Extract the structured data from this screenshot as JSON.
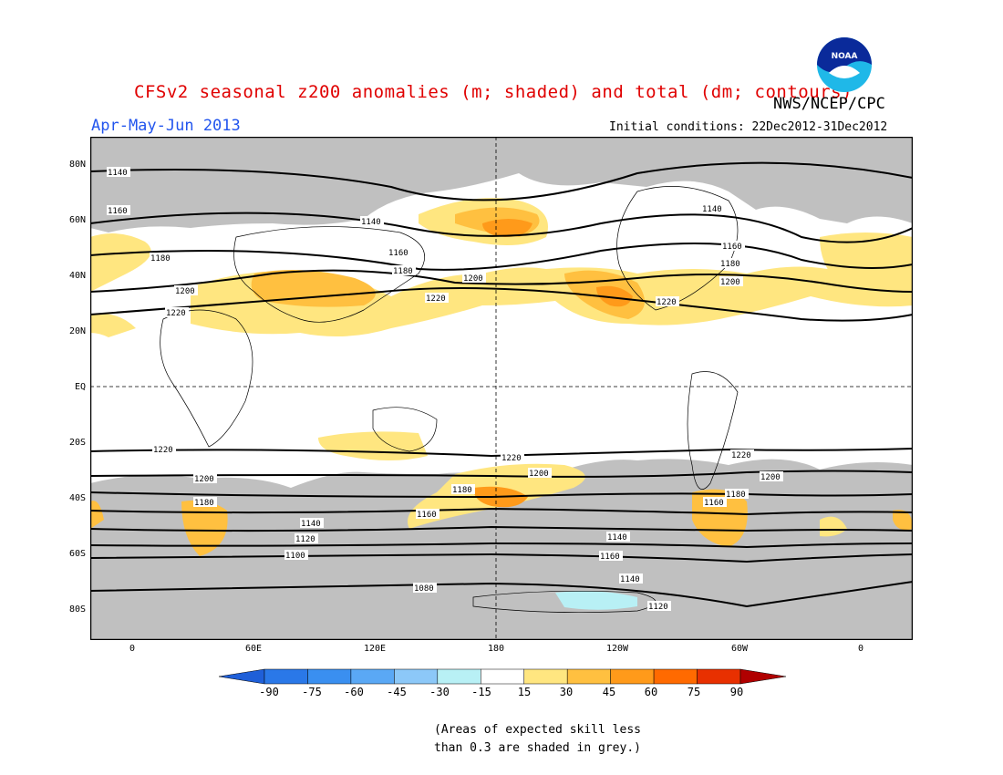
{
  "header": {
    "title": "CFSv2 seasonal z200 anomalies (m; shaded) and total (dm; contours)",
    "agency": "NWS/NCEP/CPC",
    "season": "Apr-May-Jun 2013",
    "initial_conditions": "Initial conditions: 22Dec2012-31Dec2012",
    "logo_text": "NOAA"
  },
  "map": {
    "lat_labels": [
      "80N",
      "60N",
      "40N",
      "20N",
      "EQ",
      "20S",
      "40S",
      "60S",
      "80S"
    ],
    "lon_labels": [
      "0",
      "60E",
      "120E",
      "180",
      "120W",
      "60W",
      "0"
    ],
    "contour_labels": [
      "1140",
      "1160",
      "1180",
      "1200",
      "1220",
      "1140",
      "1160",
      "1180",
      "1200",
      "1220",
      "1220",
      "1200",
      "1180",
      "1160",
      "1140",
      "1120",
      "1100",
      "1080",
      "1140",
      "1160",
      "1180",
      "1200",
      "1220",
      "1140",
      "1160",
      "1180",
      "1200",
      "1220",
      "1220",
      "1200",
      "1180",
      "1160",
      "1140",
      "1120",
      "1100",
      "1080",
      "1220",
      "1200",
      "1180",
      "1160"
    ]
  },
  "colorbar": {
    "labels": [
      "-90",
      "-75",
      "-60",
      "-45",
      "-30",
      "-15",
      "15",
      "30",
      "45",
      "60",
      "75",
      "90"
    ],
    "colors": [
      "#1f5fd8",
      "#2a78e8",
      "#3a8ff0",
      "#5aa8f5",
      "#8cc8f8",
      "#b8f0f5",
      "#ffffff",
      "#ffe680",
      "#ffc040",
      "#ff9a1a",
      "#ff6a00",
      "#e83000",
      "#b00000"
    ]
  },
  "footnote": {
    "line1": "(Areas of expected skill less",
    "line2": "than 0.3 are shaded in grey.)"
  }
}
